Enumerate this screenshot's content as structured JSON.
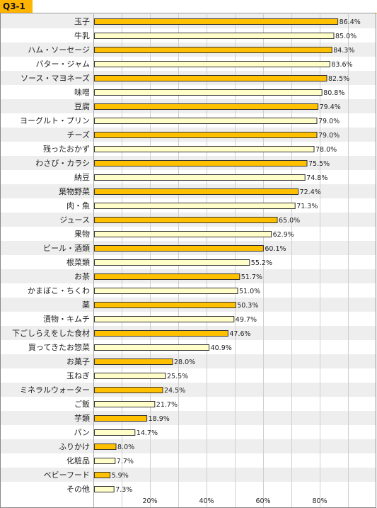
{
  "title": "Q3-1",
  "colors": {
    "highlight_fill": "#ffc000",
    "normal_fill": "#fffdc8",
    "bar_stroke": "#333333",
    "row_shade": "#eeeeee",
    "accent": "#ffb400"
  },
  "chart_data": {
    "type": "bar",
    "orientation": "horizontal",
    "title": "Q3-1",
    "xlabel": "",
    "ylabel": "",
    "xlim": [
      0,
      100
    ],
    "xticks": [
      "20%",
      "40%",
      "60%",
      "80%"
    ],
    "grid": true,
    "categories": [
      "玉子",
      "牛乳",
      "ハム・ソーセージ",
      "バター・ジャム",
      "ソース・マヨネーズ",
      "味噌",
      "豆腐",
      "ヨーグルト・プリン",
      "チーズ",
      "残ったおかず",
      "わさび・カラシ",
      "納豆",
      "葉物野菜",
      "肉・魚",
      "ジュース",
      "果物",
      "ビール・酒類",
      "根菜類",
      "お茶",
      "かまぼこ・ちくわ",
      "薬",
      "漬物・キムチ",
      "下ごしらえをした食材",
      "買ってきたお惣菜",
      "お菓子",
      "玉ねぎ",
      "ミネラルウォーター",
      "ご飯",
      "芋類",
      "パン",
      "ふりかけ",
      "化粧品",
      "ベビーフード",
      "その他"
    ],
    "values": [
      86.4,
      85.0,
      84.3,
      83.6,
      82.5,
      80.8,
      79.4,
      79.0,
      79.0,
      78.0,
      75.5,
      74.8,
      72.4,
      71.3,
      65.0,
      62.9,
      60.1,
      55.2,
      51.7,
      51.0,
      50.3,
      49.7,
      47.6,
      40.9,
      28.0,
      25.5,
      24.5,
      21.7,
      18.9,
      14.7,
      8.0,
      7.7,
      5.9,
      7.3
    ],
    "value_labels": [
      "86.4%",
      "85.0%",
      "84.3%",
      "83.6%",
      "82.5%",
      "80.8%",
      "79.4%",
      "79.0%",
      "79.0%",
      "78.0%",
      "75.5%",
      "74.8%",
      "72.4%",
      "71.3%",
      "65.0%",
      "62.9%",
      "60.1%",
      "55.2%",
      "51.7%",
      "51.0%",
      "50.3%",
      "49.7%",
      "47.6%",
      "40.9%",
      "28.0%",
      "25.5%",
      "24.5%",
      "21.7%",
      "18.9%",
      "14.7%",
      "8.0%",
      "7.7%",
      "5.9%",
      "7.3%"
    ],
    "highlighted": [
      true,
      false,
      true,
      false,
      true,
      false,
      true,
      false,
      true,
      false,
      true,
      false,
      true,
      false,
      true,
      false,
      true,
      false,
      true,
      false,
      true,
      false,
      true,
      false,
      true,
      false,
      true,
      false,
      true,
      false,
      true,
      false,
      true,
      false
    ]
  }
}
